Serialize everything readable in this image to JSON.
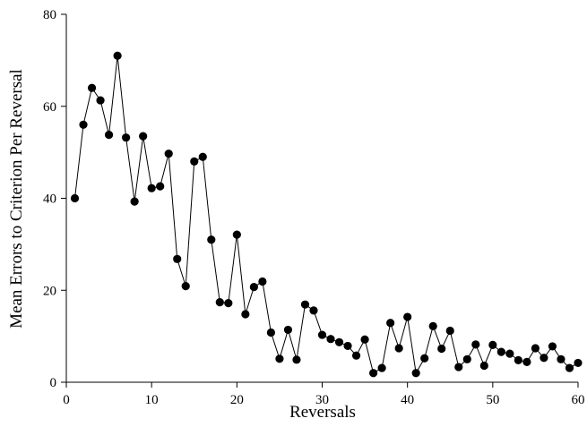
{
  "chart_data": {
    "type": "line",
    "title": "",
    "xlabel": "Reversals",
    "ylabel": "Mean Errors to Criterion Per Reversal",
    "xlim": [
      0,
      60
    ],
    "ylim": [
      0,
      80
    ],
    "xticks": [
      0,
      10,
      20,
      30,
      40,
      50,
      60
    ],
    "yticks": [
      0,
      20,
      40,
      60,
      80
    ],
    "grid": false,
    "legend": "none",
    "marker": "filled-circle",
    "colors": {
      "line": "#000000",
      "marker": "#000000",
      "axis": "#000000"
    },
    "series": [
      {
        "x": [
          1,
          2,
          3,
          4,
          5,
          6,
          7,
          8,
          9,
          10,
          11,
          12,
          13,
          14,
          15,
          16,
          17,
          18,
          19,
          20,
          21,
          22,
          23,
          24,
          25,
          26,
          27,
          28,
          29,
          30,
          31,
          32,
          33,
          34,
          35,
          36,
          37,
          38,
          39,
          40,
          41,
          42,
          43,
          44,
          45,
          46,
          47,
          48,
          49,
          50,
          51,
          52,
          53,
          54,
          55,
          56,
          57,
          58,
          59,
          60
        ],
        "y": [
          40,
          56,
          64,
          61.3,
          53.8,
          71,
          53.2,
          39.3,
          53.5,
          42.2,
          42.6,
          49.7,
          26.8,
          20.9,
          48,
          49,
          31,
          17.4,
          17.2,
          32.1,
          14.8,
          20.7,
          21.9,
          10.8,
          5.1,
          11.4,
          4.9,
          16.9,
          15.6,
          10.3,
          9.4,
          8.7,
          7.9,
          5.8,
          9.3,
          2,
          3.1,
          12.9,
          7.4,
          14.2,
          2,
          5.2,
          12.2,
          7.3,
          11.2,
          3.3,
          5,
          8.2,
          3.6,
          8.1,
          6.6,
          6.2,
          4.8,
          4.4,
          7.4,
          5.3,
          7.8,
          5,
          3.1,
          4.2
        ]
      }
    ]
  }
}
